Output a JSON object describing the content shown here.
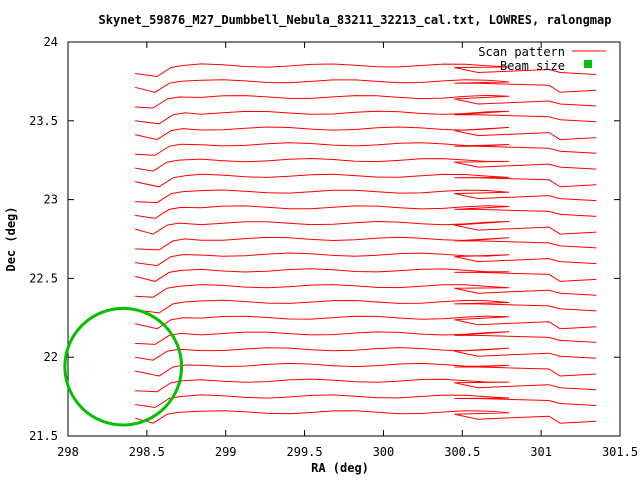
{
  "chart_data": {
    "type": "line",
    "title": "Skynet_59876_M27_Dumbbell_Nebula_83211_32213_cal.txt, LOWRES, ralongmap",
    "xlabel": "RA (deg)",
    "ylabel": "Dec (deg)",
    "xlim": [
      298,
      301.5
    ],
    "ylim": [
      21.5,
      24
    ],
    "xticks": [
      "298",
      "298.5",
      "299",
      "299.5",
      "300",
      "300.5",
      "301",
      "301.5"
    ],
    "yticks": [
      "21.5",
      "22",
      "22.5",
      "23",
      "23.5",
      "24"
    ],
    "legend_position": "top-right",
    "grid": false,
    "colors": {
      "scan": "#ff0000",
      "beam": "#00c000",
      "axes": "#000000"
    },
    "series": [
      {
        "name": "Scan pattern",
        "kind": "scan-rows",
        "row_dec": [
          21.6,
          21.7,
          21.8,
          21.9,
          22.0,
          22.1,
          22.2,
          22.3,
          22.4,
          22.5,
          22.6,
          22.7,
          22.8,
          22.9,
          23.0,
          23.1,
          23.2,
          23.3,
          23.4,
          23.5,
          23.6,
          23.7,
          23.8
        ],
        "ra_start": 298.4,
        "ra_end": 301.35
      },
      {
        "name": "Beam size",
        "kind": "circle",
        "center": [
          298.35,
          21.94
        ],
        "radius_ra": 0.37,
        "radius_dec": 0.37
      }
    ]
  }
}
